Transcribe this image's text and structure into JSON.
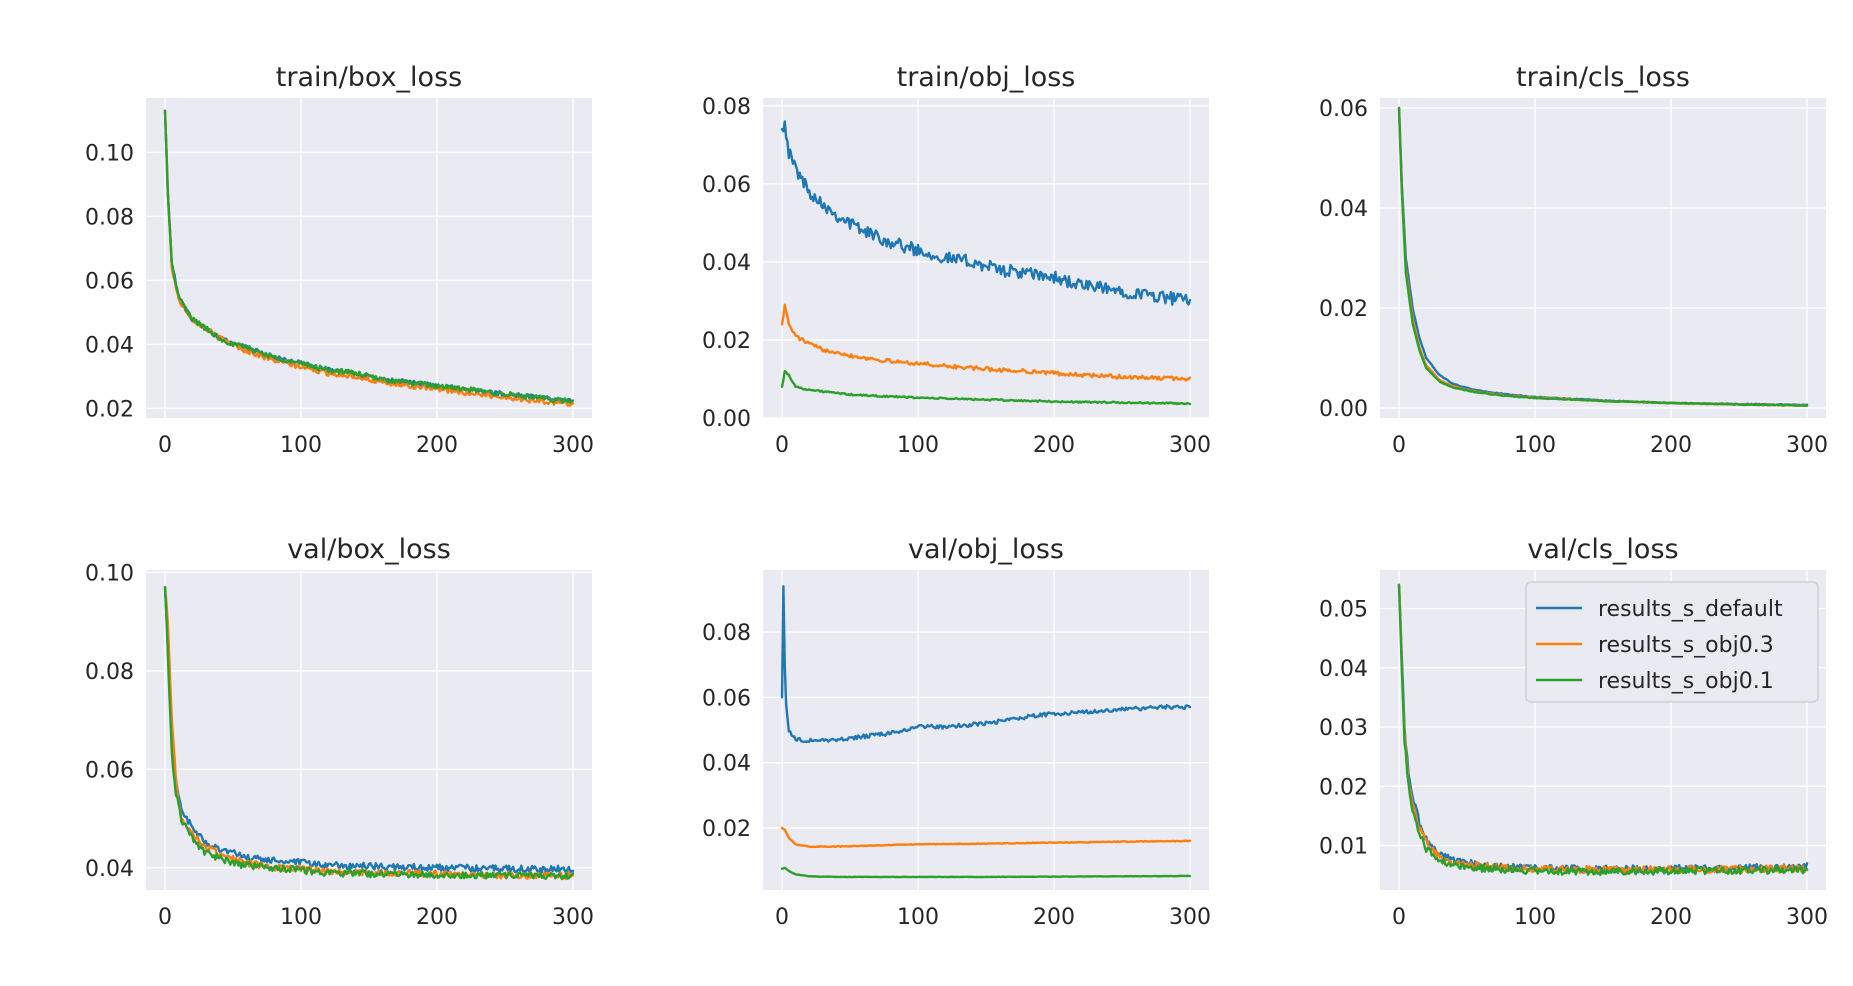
{
  "colors": {
    "results_s_default": "#1f77b4",
    "results_s_obj0.3": "#ff7f0e",
    "results_s_obj0.1": "#2ca02c",
    "panel_background": "#eaeaf2",
    "grid": "#ffffff"
  },
  "chart_data": [
    {
      "type": "line",
      "title": "train/box_loss",
      "xlim": [
        -14,
        314
      ],
      "ylim": [
        0.017,
        0.117
      ],
      "xticks": [
        0,
        100,
        200,
        300
      ],
      "yticks": [
        0.02,
        0.04,
        0.06,
        0.08,
        0.1
      ],
      "ytick_labels": [
        "0.02",
        "0.04",
        "0.06",
        "0.08",
        "0.10"
      ],
      "grid": true,
      "series": [
        {
          "name": "results_s_default",
          "x": [
            0,
            2,
            5,
            10,
            15,
            20,
            30,
            40,
            50,
            60,
            80,
            100,
            120,
            140,
            160,
            180,
            200,
            220,
            240,
            260,
            280,
            300
          ],
          "y": [
            0.113,
            0.088,
            0.065,
            0.055,
            0.051,
            0.048,
            0.045,
            0.042,
            0.04,
            0.039,
            0.036,
            0.034,
            0.032,
            0.031,
            0.029,
            0.028,
            0.027,
            0.026,
            0.025,
            0.024,
            0.023,
            0.022
          ],
          "noise": 0.0008
        },
        {
          "name": "results_s_obj0.3",
          "x": [
            0,
            2,
            5,
            10,
            15,
            20,
            30,
            40,
            50,
            60,
            80,
            100,
            120,
            140,
            160,
            180,
            200,
            220,
            240,
            260,
            280,
            300
          ],
          "y": [
            0.113,
            0.088,
            0.064,
            0.054,
            0.051,
            0.048,
            0.045,
            0.042,
            0.04,
            0.038,
            0.035,
            0.033,
            0.031,
            0.03,
            0.028,
            0.027,
            0.026,
            0.025,
            0.024,
            0.023,
            0.022,
            0.0215
          ],
          "noise": 0.0008
        },
        {
          "name": "results_s_obj0.1",
          "x": [
            0,
            2,
            5,
            10,
            15,
            20,
            30,
            40,
            50,
            60,
            80,
            100,
            120,
            140,
            160,
            180,
            200,
            220,
            240,
            260,
            280,
            300
          ],
          "y": [
            0.113,
            0.088,
            0.065,
            0.055,
            0.051,
            0.048,
            0.045,
            0.042,
            0.04,
            0.039,
            0.036,
            0.034,
            0.032,
            0.031,
            0.029,
            0.028,
            0.027,
            0.026,
            0.025,
            0.024,
            0.023,
            0.022
          ],
          "noise": 0.0008
        }
      ]
    },
    {
      "type": "line",
      "title": "train/obj_loss",
      "xlim": [
        -14,
        314
      ],
      "ylim": [
        0.0,
        0.082
      ],
      "xticks": [
        0,
        100,
        200,
        300
      ],
      "yticks": [
        0.0,
        0.02,
        0.04,
        0.06,
        0.08
      ],
      "ytick_labels": [
        "0.00",
        "0.02",
        "0.04",
        "0.06",
        "0.08"
      ],
      "grid": true,
      "series": [
        {
          "name": "results_s_default",
          "x": [
            0,
            2,
            5,
            10,
            20,
            30,
            40,
            50,
            60,
            80,
            100,
            120,
            140,
            160,
            180,
            200,
            220,
            240,
            260,
            280,
            300
          ],
          "y": [
            0.074,
            0.076,
            0.068,
            0.064,
            0.058,
            0.055,
            0.052,
            0.05,
            0.048,
            0.045,
            0.043,
            0.041,
            0.04,
            0.038,
            0.037,
            0.036,
            0.034,
            0.033,
            0.032,
            0.031,
            0.03
          ],
          "noise": 0.0016
        },
        {
          "name": "results_s_obj0.3",
          "x": [
            0,
            2,
            5,
            10,
            20,
            30,
            40,
            50,
            60,
            80,
            100,
            120,
            140,
            160,
            180,
            200,
            220,
            240,
            260,
            280,
            300
          ],
          "y": [
            0.024,
            0.029,
            0.024,
            0.021,
            0.019,
            0.0175,
            0.017,
            0.016,
            0.0155,
            0.0145,
            0.014,
            0.0133,
            0.0128,
            0.0123,
            0.012,
            0.0115,
            0.011,
            0.0107,
            0.0104,
            0.0102,
            0.01
          ],
          "noise": 0.0005
        },
        {
          "name": "results_s_obj0.1",
          "x": [
            0,
            2,
            5,
            10,
            20,
            30,
            40,
            50,
            60,
            80,
            100,
            120,
            140,
            160,
            180,
            200,
            220,
            240,
            260,
            280,
            300
          ],
          "y": [
            0.008,
            0.012,
            0.011,
            0.008,
            0.0072,
            0.0068,
            0.0064,
            0.006,
            0.0058,
            0.0055,
            0.0052,
            0.005,
            0.0048,
            0.0046,
            0.0044,
            0.0042,
            0.0041,
            0.004,
            0.0039,
            0.0038,
            0.0037
          ],
          "noise": 0.0002
        }
      ]
    },
    {
      "type": "line",
      "title": "train/cls_loss",
      "xlim": [
        -14,
        314
      ],
      "ylim": [
        -0.002,
        0.062
      ],
      "xticks": [
        0,
        100,
        200,
        300
      ],
      "yticks": [
        0.0,
        0.02,
        0.04,
        0.06
      ],
      "ytick_labels": [
        "0.00",
        "0.02",
        "0.04",
        "0.06"
      ],
      "grid": true,
      "series": [
        {
          "name": "results_s_default",
          "x": [
            0,
            2,
            5,
            10,
            15,
            20,
            30,
            40,
            50,
            60,
            80,
            100,
            150,
            200,
            250,
            300
          ],
          "y": [
            0.06,
            0.045,
            0.03,
            0.02,
            0.014,
            0.01,
            0.0065,
            0.0048,
            0.004,
            0.0034,
            0.0027,
            0.0022,
            0.0015,
            0.001,
            0.0008,
            0.0006
          ],
          "noise": 8e-05
        },
        {
          "name": "results_s_obj0.3",
          "x": [
            0,
            2,
            5,
            10,
            15,
            20,
            30,
            40,
            50,
            60,
            80,
            100,
            150,
            200,
            250,
            300
          ],
          "y": [
            0.06,
            0.044,
            0.028,
            0.018,
            0.012,
            0.0085,
            0.0055,
            0.0043,
            0.0036,
            0.0031,
            0.0025,
            0.0021,
            0.0014,
            0.001,
            0.0007,
            0.0005
          ],
          "noise": 8e-05
        },
        {
          "name": "results_s_obj0.1",
          "x": [
            0,
            2,
            5,
            10,
            15,
            20,
            30,
            40,
            50,
            60,
            80,
            100,
            150,
            200,
            250,
            300
          ],
          "y": [
            0.06,
            0.044,
            0.027,
            0.017,
            0.0115,
            0.008,
            0.0052,
            0.0041,
            0.0035,
            0.003,
            0.0024,
            0.002,
            0.0014,
            0.001,
            0.0007,
            0.0005
          ],
          "noise": 8e-05
        }
      ]
    },
    {
      "type": "line",
      "title": "val/box_loss",
      "xlim": [
        -14,
        314
      ],
      "ylim": [
        0.0355,
        0.1005
      ],
      "xticks": [
        0,
        100,
        200,
        300
      ],
      "yticks": [
        0.04,
        0.06,
        0.08,
        0.1
      ],
      "ytick_labels": [
        "0.04",
        "0.06",
        "0.08",
        "0.10"
      ],
      "grid": true,
      "series": [
        {
          "name": "results_s_default",
          "x": [
            0,
            2,
            5,
            8,
            12,
            20,
            30,
            40,
            50,
            60,
            80,
            100,
            120,
            150,
            200,
            250,
            300
          ],
          "y": [
            0.097,
            0.085,
            0.066,
            0.058,
            0.052,
            0.048,
            0.045,
            0.044,
            0.043,
            0.042,
            0.0415,
            0.041,
            0.0405,
            0.0403,
            0.04,
            0.0398,
            0.0397
          ],
          "noise": 0.0007
        },
        {
          "name": "results_s_obj0.3",
          "x": [
            0,
            2,
            5,
            8,
            12,
            20,
            30,
            40,
            50,
            60,
            80,
            100,
            120,
            150,
            200,
            250,
            300
          ],
          "y": [
            0.097,
            0.09,
            0.07,
            0.058,
            0.05,
            0.047,
            0.044,
            0.043,
            0.042,
            0.041,
            0.04,
            0.0397,
            0.0393,
            0.039,
            0.0388,
            0.0385,
            0.0384
          ],
          "noise": 0.0007
        },
        {
          "name": "results_s_obj0.1",
          "x": [
            0,
            2,
            5,
            8,
            12,
            20,
            30,
            40,
            50,
            60,
            80,
            100,
            120,
            150,
            200,
            250,
            300
          ],
          "y": [
            0.097,
            0.084,
            0.063,
            0.055,
            0.05,
            0.046,
            0.043,
            0.042,
            0.041,
            0.0405,
            0.04,
            0.0395,
            0.039,
            0.0388,
            0.0386,
            0.0385,
            0.0384
          ],
          "noise": 0.0007
        }
      ]
    },
    {
      "type": "line",
      "title": "val/obj_loss",
      "xlim": [
        -14,
        314
      ],
      "ylim": [
        0.001,
        0.099
      ],
      "xticks": [
        0,
        100,
        200,
        300
      ],
      "yticks": [
        0.02,
        0.04,
        0.06,
        0.08
      ],
      "ytick_labels": [
        "0.02",
        "0.04",
        "0.06",
        "0.08"
      ],
      "grid": true,
      "series": [
        {
          "name": "results_s_default",
          "x": [
            0,
            1,
            2,
            3,
            5,
            10,
            20,
            40,
            60,
            80,
            100,
            120,
            150,
            180,
            200,
            220,
            240,
            260,
            280,
            300
          ],
          "y": [
            0.06,
            0.094,
            0.07,
            0.058,
            0.05,
            0.047,
            0.0468,
            0.047,
            0.048,
            0.049,
            0.051,
            0.051,
            0.052,
            0.054,
            0.055,
            0.0555,
            0.056,
            0.0565,
            0.057,
            0.057
          ],
          "noise": 0.0006
        },
        {
          "name": "results_s_obj0.3",
          "x": [
            0,
            2,
            5,
            10,
            20,
            40,
            60,
            80,
            100,
            150,
            200,
            250,
            300
          ],
          "y": [
            0.02,
            0.0195,
            0.017,
            0.015,
            0.0143,
            0.0143,
            0.0145,
            0.0148,
            0.015,
            0.0152,
            0.0155,
            0.0158,
            0.016
          ],
          "noise": 0.00012
        },
        {
          "name": "results_s_obj0.1",
          "x": [
            0,
            2,
            5,
            10,
            20,
            40,
            60,
            80,
            100,
            150,
            200,
            250,
            300
          ],
          "y": [
            0.0075,
            0.0078,
            0.0068,
            0.0058,
            0.0052,
            0.005,
            0.005,
            0.005,
            0.005,
            0.005,
            0.0051,
            0.0052,
            0.0053
          ],
          "noise": 5e-05
        }
      ]
    },
    {
      "type": "line",
      "title": "val/cls_loss",
      "xlim": [
        -14,
        314
      ],
      "ylim": [
        0.0025,
        0.0565
      ],
      "xticks": [
        0,
        100,
        200,
        300
      ],
      "yticks": [
        0.01,
        0.02,
        0.03,
        0.04,
        0.05
      ],
      "ytick_labels": [
        "0.01",
        "0.02",
        "0.03",
        "0.04",
        "0.05"
      ],
      "grid": true,
      "legend": {
        "position": "upper-right",
        "entries": [
          "results_s_default",
          "results_s_obj0.3",
          "results_s_obj0.1"
        ]
      },
      "series": [
        {
          "name": "results_s_default",
          "x": [
            0,
            2,
            4,
            7,
            10,
            15,
            20,
            30,
            40,
            60,
            80,
            100,
            150,
            200,
            250,
            300
          ],
          "y": [
            0.054,
            0.042,
            0.03,
            0.022,
            0.018,
            0.014,
            0.011,
            0.0085,
            0.0075,
            0.0068,
            0.0064,
            0.0062,
            0.006,
            0.0061,
            0.0062,
            0.0064
          ],
          "noise": 0.0006
        },
        {
          "name": "results_s_obj0.3",
          "x": [
            0,
            2,
            4,
            7,
            10,
            15,
            20,
            30,
            40,
            60,
            80,
            100,
            150,
            200,
            250,
            300
          ],
          "y": [
            0.054,
            0.041,
            0.029,
            0.021,
            0.017,
            0.013,
            0.0105,
            0.008,
            0.0072,
            0.0066,
            0.0062,
            0.006,
            0.0059,
            0.006,
            0.006,
            0.0061
          ],
          "noise": 0.0006
        },
        {
          "name": "results_s_obj0.1",
          "x": [
            0,
            2,
            4,
            7,
            10,
            15,
            20,
            30,
            40,
            60,
            80,
            100,
            150,
            200,
            250,
            300
          ],
          "y": [
            0.054,
            0.04,
            0.028,
            0.02,
            0.016,
            0.012,
            0.0095,
            0.0075,
            0.0068,
            0.0062,
            0.0059,
            0.0057,
            0.0056,
            0.0057,
            0.0058,
            0.0059
          ],
          "noise": 0.0006
        }
      ]
    }
  ]
}
